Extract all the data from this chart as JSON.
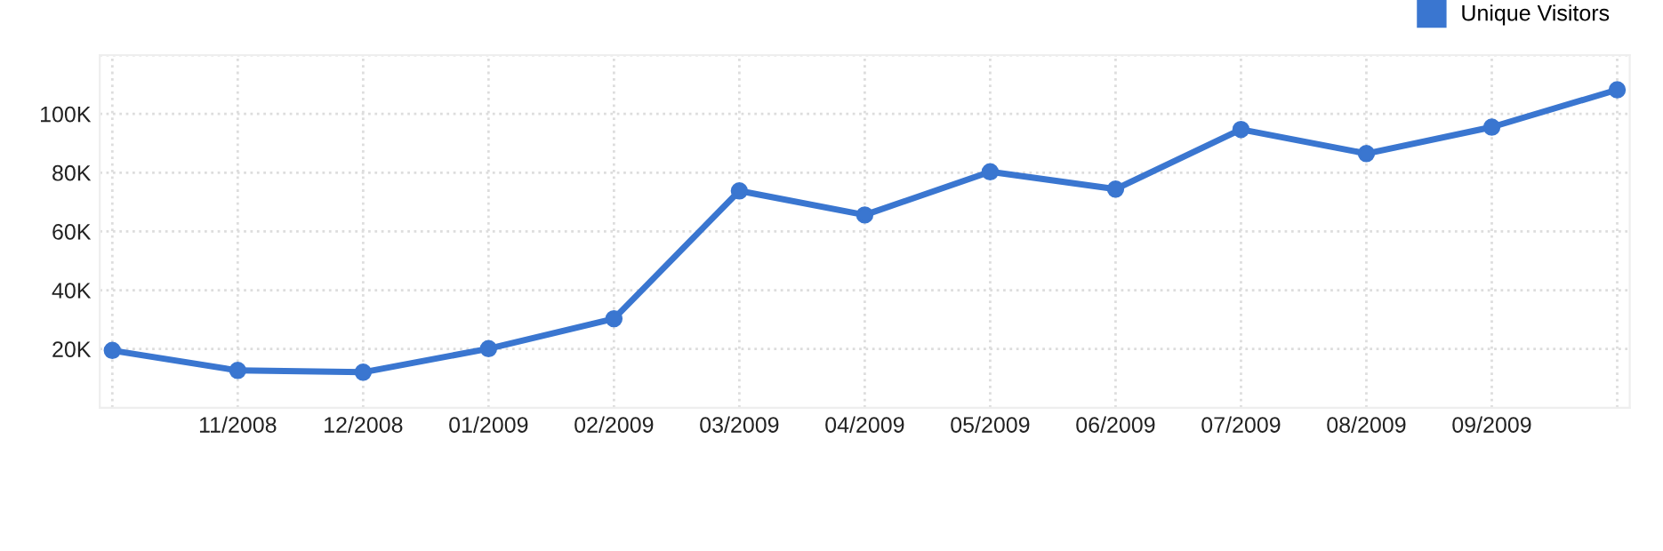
{
  "chart_data": {
    "type": "line",
    "categories": [
      null,
      "11/2008",
      "12/2008",
      "01/2009",
      "02/2009",
      "03/2009",
      "04/2009",
      "05/2009",
      "06/2009",
      "07/2009",
      "08/2009",
      "09/2009",
      null
    ],
    "series": [
      {
        "name": "Unique Visitors",
        "color": "#3a76d0",
        "values": [
          19500,
          12700,
          12100,
          20100,
          30300,
          73800,
          65600,
          80300,
          74400,
          94700,
          86500,
          95500,
          108200
        ]
      }
    ],
    "ylim": [
      0,
      120000
    ],
    "yticks": [
      {
        "value": 20000,
        "label": "20K"
      },
      {
        "value": 40000,
        "label": "40K"
      },
      {
        "value": 60000,
        "label": "60K"
      },
      {
        "value": 80000,
        "label": "80K"
      },
      {
        "value": 100000,
        "label": "100K"
      },
      {
        "value": 120000,
        "label": null
      }
    ],
    "grid": true,
    "legend": "top right",
    "marker": "circle",
    "line_style": "solid"
  }
}
